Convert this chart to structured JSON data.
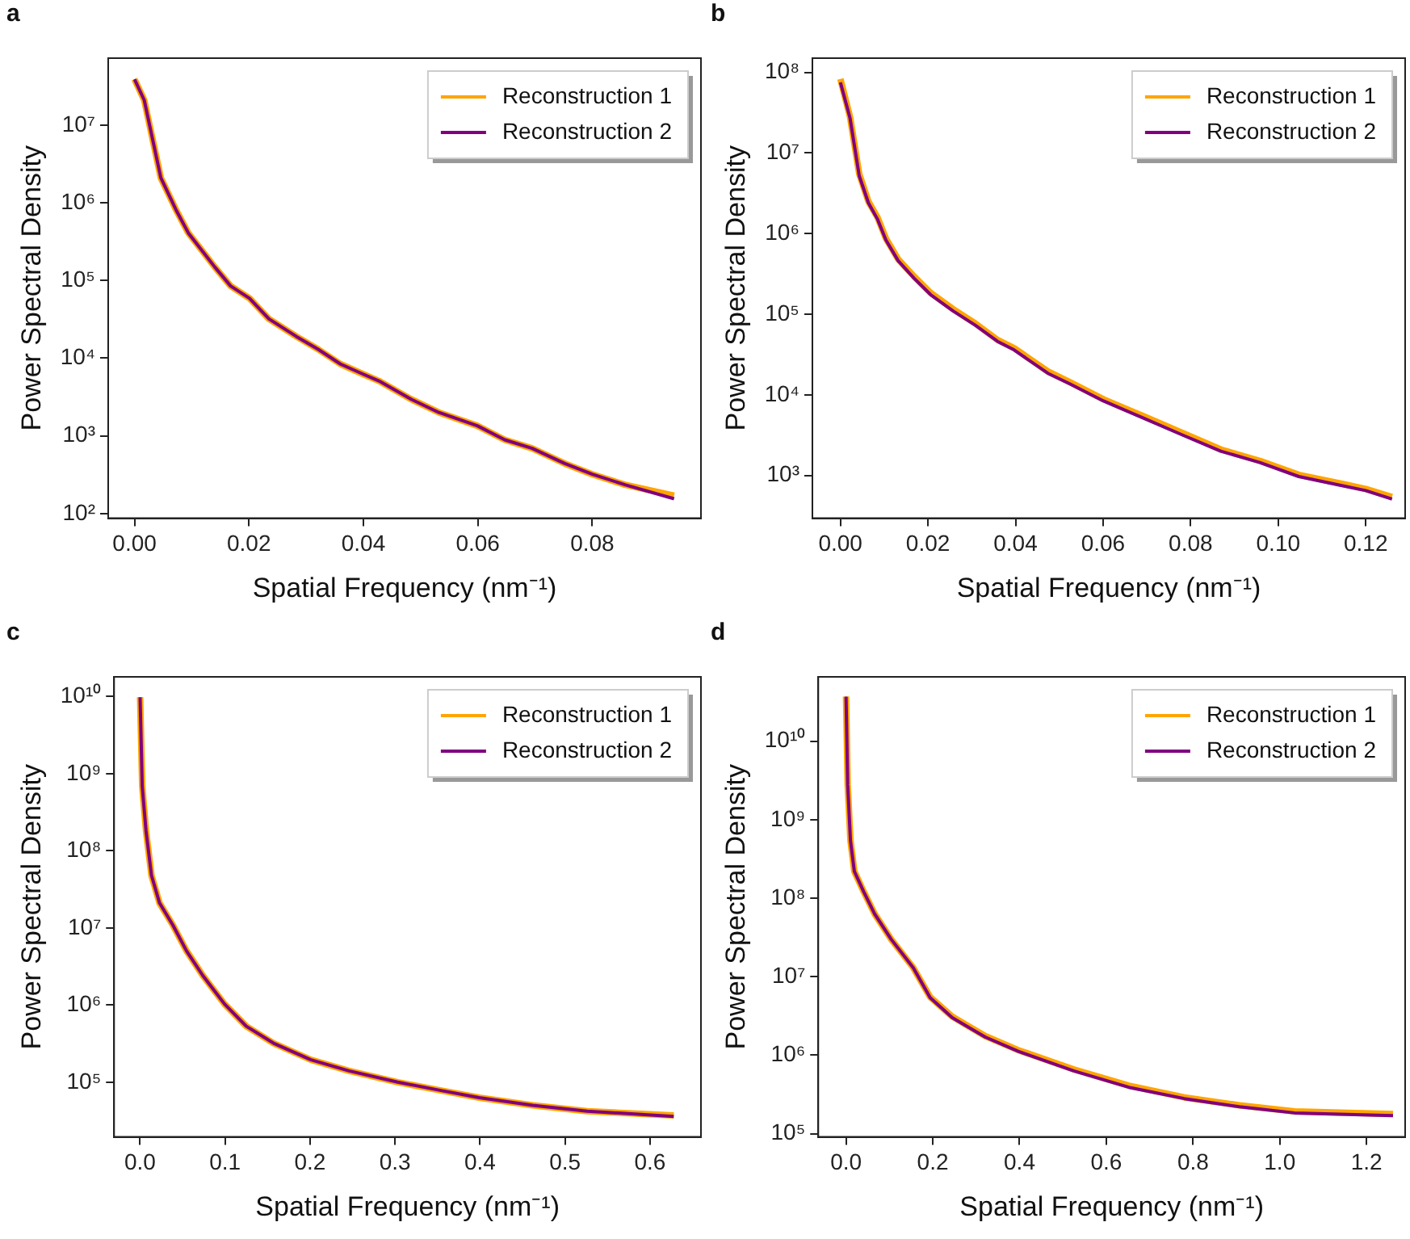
{
  "chart_data": [
    {
      "type": "line",
      "title": "a",
      "xlabel": "Spatial Frequency (nm⁻¹)",
      "ylabel": "Power Spectral Density",
      "log": "y",
      "grid": false,
      "legend": "top right",
      "xlim": [
        -0.0046,
        0.099
      ],
      "xticks": [
        {
          "value": 0,
          "label": "0.00"
        },
        {
          "value": 0.02,
          "label": "0.02"
        },
        {
          "value": 0.04,
          "label": "0.04"
        },
        {
          "value": 0.06,
          "label": "0.06"
        },
        {
          "value": 0.08,
          "label": "0.08"
        }
      ],
      "ylim": [
        87,
        73000000
      ],
      "yticks": [
        {
          "value": 100,
          "label": "10²"
        },
        {
          "value": 1000,
          "label": "10³"
        },
        {
          "value": 10000,
          "label": "10⁴"
        },
        {
          "value": 100000,
          "label": "10⁵"
        },
        {
          "value": 1000000,
          "label": "10⁶"
        },
        {
          "value": 10000000,
          "label": "10⁷"
        }
      ],
      "x": [
        0,
        0.0017,
        0.0046,
        0.0073,
        0.0094,
        0.014,
        0.0168,
        0.0201,
        0.0235,
        0.0283,
        0.0321,
        0.036,
        0.0398,
        0.0427,
        0.0484,
        0.0532,
        0.0599,
        0.0647,
        0.0695,
        0.0752,
        0.08,
        0.0857,
        0.0943
      ],
      "series": [
        {
          "name": "Reconstruction 1",
          "color": "#ffa500",
          "values": [
            39000000,
            21000000,
            2100000,
            800000,
            410000,
            150000,
            85000,
            59000,
            32000,
            19000,
            13000,
            8400,
            6300,
            5100,
            2950,
            2000,
            1350,
            890,
            690,
            440,
            320,
            235,
            170
          ]
        },
        {
          "name": "Reconstruction 2",
          "color": "#800080",
          "values": [
            39000000,
            21000000,
            2100000,
            800000,
            410000,
            150000,
            85000,
            59000,
            32000,
            19000,
            13000,
            8400,
            6300,
            5100,
            2950,
            2000,
            1350,
            890,
            690,
            440,
            320,
            235,
            155
          ]
        }
      ]
    },
    {
      "type": "line",
      "title": "b",
      "xlabel": "Spatial Frequency (nm⁻¹)",
      "ylabel": "Power Spectral Density",
      "log": "y",
      "grid": false,
      "legend": "top right",
      "xlim": [
        -0.0064,
        0.129
      ],
      "xticks": [
        {
          "value": 0,
          "label": "0.00"
        },
        {
          "value": 0.02,
          "label": "0.02"
        },
        {
          "value": 0.04,
          "label": "0.04"
        },
        {
          "value": 0.06,
          "label": "0.06"
        },
        {
          "value": 0.08,
          "label": "0.08"
        },
        {
          "value": 0.1,
          "label": "0.10"
        },
        {
          "value": 0.12,
          "label": "0.12"
        }
      ],
      "ylim": [
        295,
        150000000
      ],
      "yticks": [
        {
          "value": 1000,
          "label": "10³"
        },
        {
          "value": 10000,
          "label": "10⁴"
        },
        {
          "value": 100000,
          "label": "10⁵"
        },
        {
          "value": 1000000,
          "label": "10⁶"
        },
        {
          "value": 10000000,
          "label": "10⁷"
        },
        {
          "value": 100000000,
          "label": "10⁸"
        }
      ],
      "x": [
        0,
        0.0022,
        0.0043,
        0.0064,
        0.0085,
        0.0104,
        0.0132,
        0.0168,
        0.0206,
        0.0257,
        0.0308,
        0.0359,
        0.0397,
        0.0474,
        0.0525,
        0.0601,
        0.069,
        0.078,
        0.0869,
        0.0958,
        0.1047,
        0.115,
        0.12,
        0.126
      ],
      "series": [
        {
          "name": "Reconstruction 1",
          "color": "#ffa500",
          "values": [
            83000000,
            28000000,
            5500000,
            2500000,
            1580000,
            870000,
            480000,
            295000,
            184000,
            116000,
            77000,
            48000,
            38000,
            19500,
            14300,
            8800,
            5500,
            3400,
            2100,
            1520,
            1020,
            780,
            680,
            540
          ]
        },
        {
          "name": "Reconstruction 2",
          "color": "#800080",
          "values": [
            75000000,
            27000000,
            5200000,
            2400000,
            1500000,
            830000,
            460000,
            280000,
            175000,
            110000,
            73000,
            46000,
            36000,
            18500,
            13600,
            8400,
            5200,
            3200,
            2000,
            1450,
            970,
            740,
            650,
            510
          ]
        }
      ]
    },
    {
      "type": "line",
      "title": "c",
      "xlabel": "Spatial Frequency (nm⁻¹)",
      "ylabel": "Power Spectral Density",
      "log": "y",
      "grid": false,
      "legend": "top right",
      "xlim": [
        -0.0306,
        0.66
      ],
      "xticks": [
        {
          "value": 0,
          "label": "0.0"
        },
        0.1,
        0.2,
        0.3,
        0.4,
        0.5,
        0.6
      ],
      "ylim": [
        19500,
        18000000000
      ],
      "yticks": [
        {
          "value": 100000,
          "label": "10⁵"
        },
        {
          "value": 1000000,
          "label": "10⁶"
        },
        {
          "value": 10000000,
          "label": "10⁷"
        },
        {
          "value": 100000000,
          "label": "10⁸"
        },
        {
          "value": 1000000000,
          "label": "10⁹"
        },
        {
          "value": 10000000000,
          "label": "10¹⁰"
        }
      ],
      "x": [
        0,
        0.0025,
        0.007,
        0.0134,
        0.0229,
        0.0389,
        0.0548,
        0.0739,
        0.0994,
        0.125,
        0.157,
        0.201,
        0.246,
        0.303,
        0.354,
        0.399,
        0.462,
        0.526,
        0.628
      ],
      "series": [
        {
          "name": "Reconstruction 1",
          "color": "#ffa500",
          "values": [
            9800000000,
            690000000,
            180000000,
            48000000,
            21000000,
            10700000,
            5000000,
            2400000,
            1030000,
            530000,
            320000,
            195000,
            140000,
            100000,
            78000,
            63000,
            50000,
            42000,
            37000
          ]
        },
        {
          "name": "Reconstruction 2",
          "color": "#800080",
          "values": [
            9800000000,
            690000000,
            180000000,
            48000000,
            21000000,
            10700000,
            5000000,
            2400000,
            1030000,
            530000,
            320000,
            195000,
            140000,
            100000,
            78000,
            63000,
            50000,
            42000,
            36000
          ]
        }
      ]
    },
    {
      "type": "line",
      "title": "d",
      "xlabel": "Spatial Frequency (nm⁻¹)",
      "ylabel": "Power Spectral Density",
      "log": "y",
      "grid": false,
      "legend": "top right",
      "xlim": [
        -0.064,
        1.289
      ],
      "xticks": [
        {
          "value": 0,
          "label": "0.0"
        },
        0.2,
        0.4,
        0.6,
        0.8,
        {
          "value": 1,
          "label": "1.0"
        },
        1.2
      ],
      "ylim": [
        91000,
        66000000000
      ],
      "yticks": [
        {
          "value": 100000,
          "label": "10⁵"
        },
        {
          "value": 1000000,
          "label": "10⁶"
        },
        {
          "value": 10000000,
          "label": "10⁷"
        },
        {
          "value": 100000000,
          "label": "10⁸"
        },
        {
          "value": 1000000000,
          "label": "10⁹"
        },
        {
          "value": 10000000000,
          "label": "10¹⁰"
        }
      ],
      "x": [
        0,
        0.0038,
        0.0102,
        0.0191,
        0.041,
        0.066,
        0.104,
        0.155,
        0.194,
        0.245,
        0.321,
        0.397,
        0.525,
        0.652,
        0.78,
        0.907,
        1.034,
        1.261
      ],
      "series": [
        {
          "name": "Reconstruction 1",
          "color": "#ffa500",
          "values": [
            37000000000,
            2800000000,
            540000000,
            220000000,
            120000000,
            63000000,
            30000000,
            13000000,
            5500000,
            3100000,
            1750000,
            1160000,
            660000,
            410000,
            290000,
            230000,
            192000,
            178000
          ]
        },
        {
          "name": "Reconstruction 2",
          "color": "#800080",
          "values": [
            37000000000,
            2800000000,
            540000000,
            220000000,
            120000000,
            63000000,
            30000000,
            13000000,
            5400000,
            3000000,
            1700000,
            1120000,
            630000,
            390000,
            280000,
            220000,
            184000,
            170000
          ]
        }
      ]
    }
  ]
}
